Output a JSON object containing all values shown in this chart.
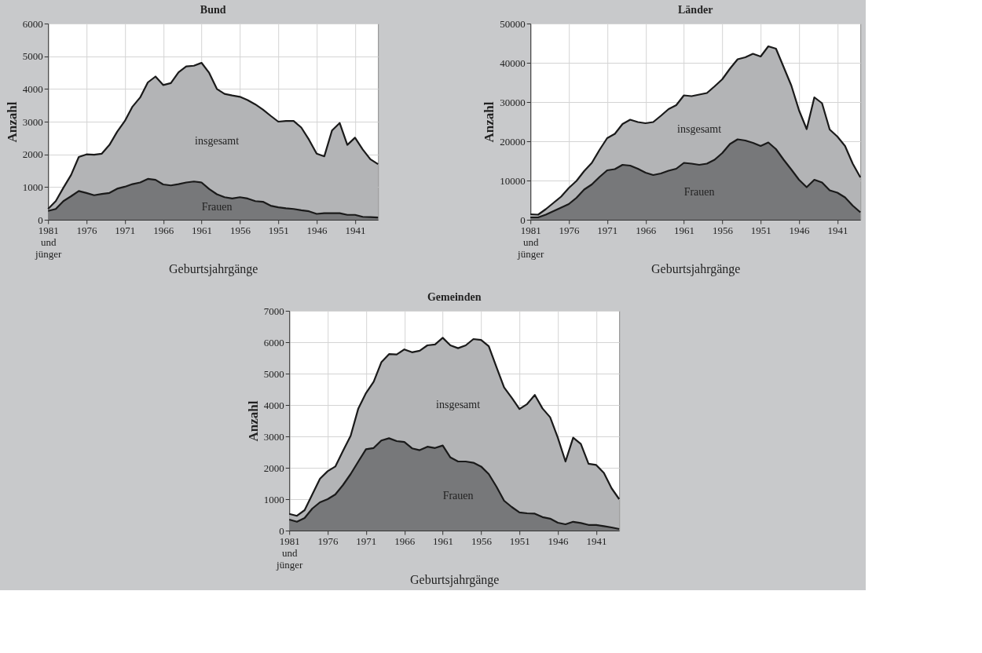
{
  "chart_data": [
    {
      "type": "area",
      "title": "Bund",
      "xlabel": "Geburtsjahrgänge",
      "ylabel": "Anzahl",
      "categories": [
        "1981\nund\njünger",
        null,
        null,
        null,
        null,
        "1976",
        null,
        null,
        null,
        null,
        "1971",
        null,
        null,
        null,
        null,
        "1966",
        null,
        null,
        null,
        null,
        "1961",
        null,
        null,
        null,
        null,
        "1956",
        null,
        null,
        null,
        null,
        "1951",
        null,
        null,
        null,
        null,
        "1946",
        null,
        null,
        null,
        null,
        "1941",
        null,
        null,
        null
      ],
      "series": [
        {
          "name": "insgesamt",
          "color": "#b3b4b6",
          "values": [
            330,
            570,
            980,
            1370,
            1920,
            2000,
            1990,
            2020,
            2290,
            2690,
            3020,
            3460,
            3740,
            4200,
            4380,
            4120,
            4180,
            4510,
            4690,
            4710,
            4800,
            4490,
            4000,
            3850,
            3800,
            3760,
            3660,
            3530,
            3370,
            3180,
            3000,
            3020,
            3020,
            2820,
            2450,
            2020,
            1940,
            2730,
            2960,
            2290,
            2510,
            2150,
            1850,
            1700
          ]
        },
        {
          "name": "Frauen",
          "color": "#77787a",
          "values": [
            270,
            330,
            570,
            720,
            880,
            820,
            750,
            790,
            820,
            950,
            1010,
            1090,
            1140,
            1250,
            1220,
            1080,
            1050,
            1090,
            1140,
            1170,
            1140,
            940,
            780,
            690,
            650,
            690,
            650,
            570,
            550,
            430,
            380,
            350,
            330,
            290,
            260,
            180,
            200,
            200,
            200,
            150,
            150,
            90,
            80,
            70
          ]
        }
      ],
      "ylim": [
        0,
        6000
      ],
      "yticks": [
        0,
        1000,
        2000,
        3000,
        4000,
        5000,
        6000
      ],
      "grid": true
    },
    {
      "type": "area",
      "title": "Länder",
      "xlabel": "Geburtsjahrgänge",
      "ylabel": "Anzahl",
      "categories": [
        "1981\nund\njünger",
        null,
        null,
        null,
        null,
        "1976",
        null,
        null,
        null,
        null,
        "1971",
        null,
        null,
        null,
        null,
        "1966",
        null,
        null,
        null,
        null,
        "1961",
        null,
        null,
        null,
        null,
        "1956",
        null,
        null,
        null,
        null,
        "1951",
        null,
        null,
        null,
        null,
        "1946",
        null,
        null,
        null,
        null,
        "1941",
        null,
        null,
        null
      ],
      "series": [
        {
          "name": "insgesamt",
          "color": "#b3b4b6",
          "values": [
            1400,
            1300,
            2700,
            4300,
            5900,
            8100,
            9900,
            12400,
            14500,
            17800,
            20800,
            21900,
            24400,
            25500,
            24900,
            24600,
            24900,
            26500,
            28200,
            29200,
            31700,
            31500,
            31900,
            32300,
            34000,
            35800,
            38500,
            40900,
            41400,
            42300,
            41600,
            44200,
            43600,
            38900,
            34200,
            27900,
            23100,
            31200,
            29700,
            23000,
            21200,
            18800,
            14300,
            10800
          ]
        },
        {
          "name": "Frauen",
          "color": "#77787a",
          "values": [
            600,
            600,
            1300,
            2200,
            3100,
            4000,
            5600,
            7700,
            9000,
            10900,
            12600,
            12900,
            14000,
            13800,
            13000,
            12000,
            11400,
            11800,
            12500,
            13000,
            14500,
            14300,
            14000,
            14300,
            15300,
            17000,
            19300,
            20500,
            20200,
            19600,
            18800,
            19700,
            18000,
            15300,
            12800,
            10200,
            8300,
            10200,
            9500,
            7500,
            6900,
            5700,
            3600,
            1900
          ]
        }
      ],
      "ylim": [
        0,
        50000
      ],
      "yticks": [
        0,
        10000,
        20000,
        30000,
        40000,
        50000
      ],
      "grid": true
    },
    {
      "type": "area",
      "title": "Gemeinden",
      "xlabel": "Geburtsjahrgänge",
      "ylabel": "Anzahl",
      "categories": [
        "1981\nund\njünger",
        null,
        null,
        null,
        null,
        "1976",
        null,
        null,
        null,
        null,
        "1971",
        null,
        null,
        null,
        null,
        "1966",
        null,
        null,
        null,
        null,
        "1961",
        null,
        null,
        null,
        null,
        "1956",
        null,
        null,
        null,
        null,
        "1951",
        null,
        null,
        null,
        null,
        "1946",
        null,
        null,
        null,
        null,
        "1941",
        null,
        null,
        null
      ],
      "series": [
        {
          "name": "insgesamt",
          "color": "#b3b4b6",
          "values": [
            530,
            470,
            650,
            1150,
            1650,
            1890,
            2040,
            2540,
            3020,
            3890,
            4380,
            4740,
            5360,
            5620,
            5610,
            5770,
            5680,
            5730,
            5900,
            5930,
            6140,
            5900,
            5810,
            5900,
            6100,
            6070,
            5870,
            5210,
            4560,
            4230,
            3870,
            4030,
            4320,
            3890,
            3610,
            2960,
            2200,
            2960,
            2760,
            2130,
            2090,
            1840,
            1350,
            1000
          ]
        },
        {
          "name": "Frauen",
          "color": "#77787a",
          "values": [
            350,
            280,
            400,
            700,
            900,
            1000,
            1150,
            1450,
            1800,
            2200,
            2590,
            2630,
            2870,
            2940,
            2850,
            2820,
            2620,
            2560,
            2670,
            2630,
            2710,
            2330,
            2200,
            2200,
            2160,
            2040,
            1800,
            1400,
            950,
            750,
            580,
            550,
            540,
            430,
            380,
            250,
            200,
            280,
            240,
            180,
            180,
            140,
            100,
            50
          ]
        }
      ],
      "ylim": [
        0,
        7000
      ],
      "yticks": [
        0,
        1000,
        2000,
        3000,
        4000,
        5000,
        6000,
        7000
      ],
      "grid": true
    }
  ]
}
